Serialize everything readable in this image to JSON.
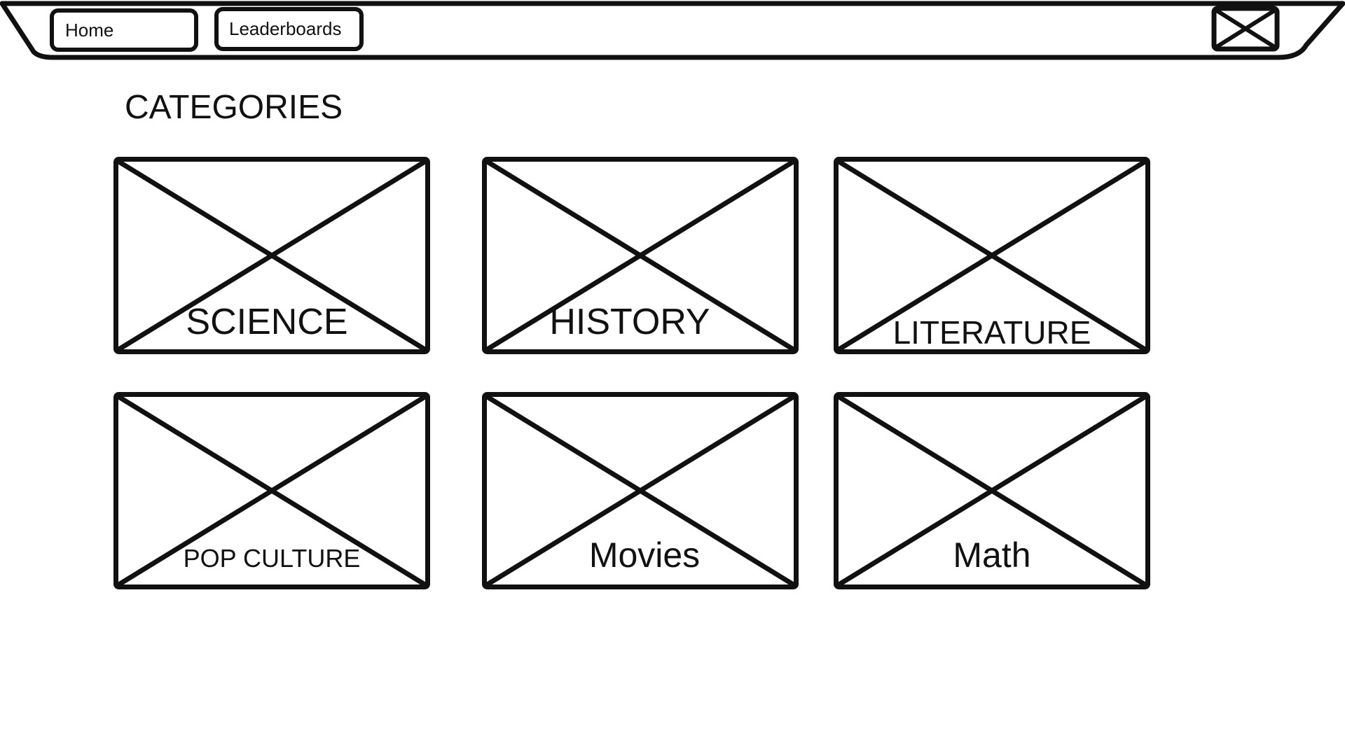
{
  "nav": {
    "home_label": "Home",
    "leaderboards_label": "Leaderboards",
    "profile_icon": "image-placeholder-icon"
  },
  "main": {
    "title": "CATEGORIES",
    "categories": [
      {
        "label": "SCIENCE",
        "icon": "image-placeholder-icon"
      },
      {
        "label": "HISTORY",
        "icon": "image-placeholder-icon"
      },
      {
        "label": "LITERATURE",
        "icon": "image-placeholder-icon"
      },
      {
        "label": "POP CULTURE",
        "icon": "image-placeholder-icon"
      },
      {
        "label": "Movies",
        "icon": "image-placeholder-icon"
      },
      {
        "label": "Math",
        "icon": "image-placeholder-icon"
      }
    ]
  },
  "colors": {
    "stroke": "#111111",
    "background": "#ffffff"
  }
}
